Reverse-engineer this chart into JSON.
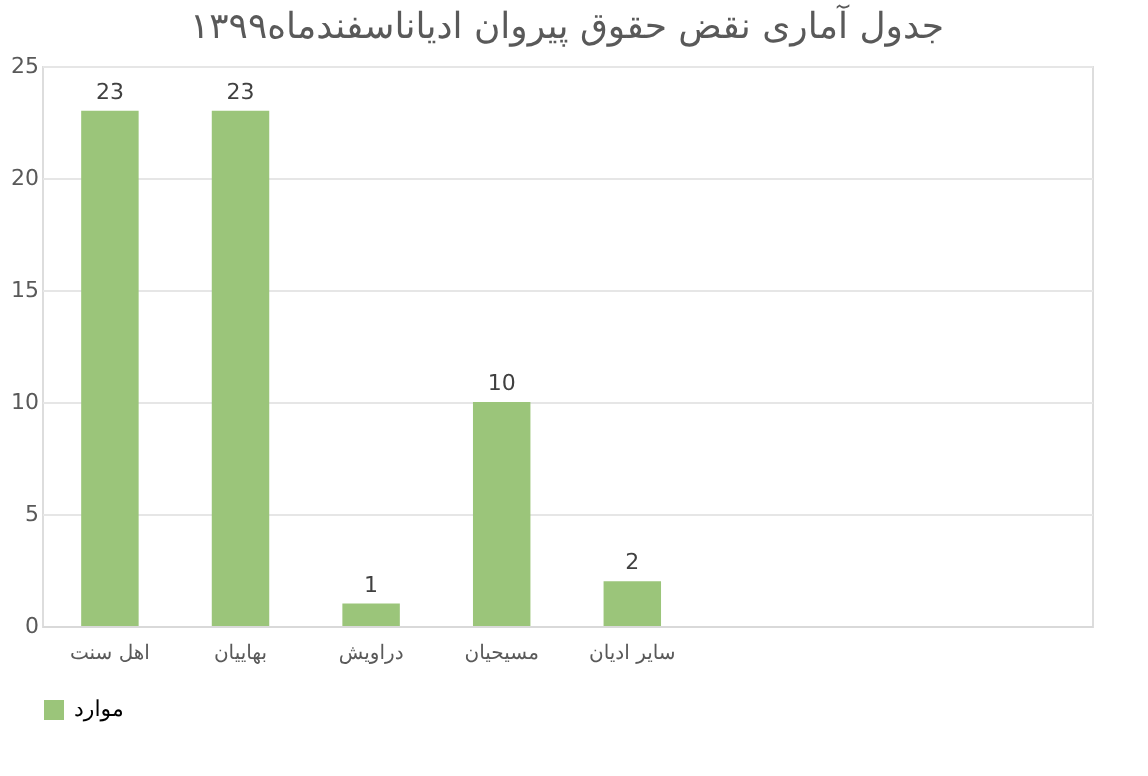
{
  "chart_data": {
    "type": "bar",
    "title": "جدول آماری نقض حقوق پیروان ادیاناسفندماه۱۳۹۹",
    "categories": [
      "اهل سنت",
      "بهاییان",
      "دراویش",
      "مسیحیان",
      "سایر ادیان",
      null,
      null,
      null
    ],
    "series": [
      {
        "name": "موارد",
        "color": "#9bc57a",
        "values": [
          23,
          23,
          1,
          10,
          2,
          null,
          null,
          null
        ]
      }
    ],
    "ylim": [
      0,
      25
    ],
    "yticks": [
      0,
      5,
      10,
      15,
      20,
      25
    ],
    "grid": "y",
    "legend": "bottom",
    "data_labels": true
  }
}
